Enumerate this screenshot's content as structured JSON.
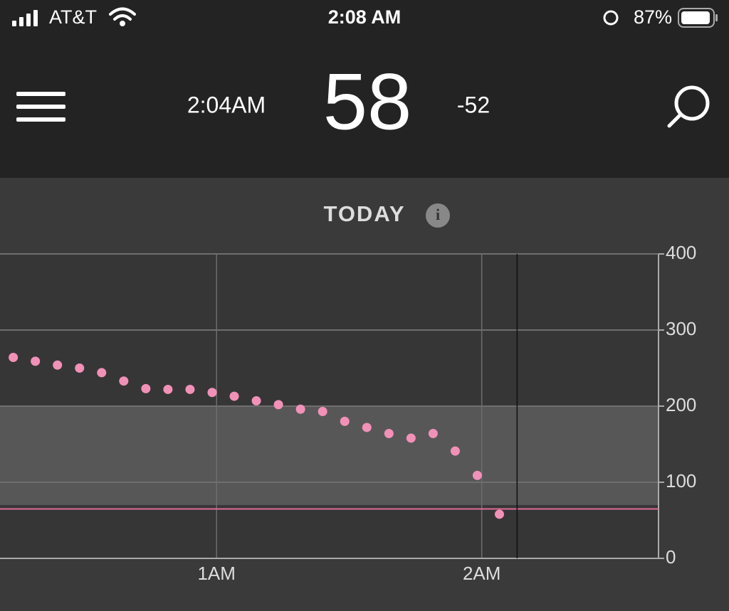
{
  "status_bar": {
    "carrier": "AT&T",
    "time": "2:08 AM",
    "battery": "87%"
  },
  "header": {
    "reading_time": "2:04AM",
    "glucose": "58",
    "delta": "-52"
  },
  "chart_data": {
    "type": "scatter",
    "title": "TODAY",
    "x": [
      14,
      19,
      24,
      29,
      34,
      39,
      44,
      49,
      54,
      59,
      64,
      69,
      74,
      79,
      84,
      89,
      94,
      99,
      104,
      109,
      114,
      119,
      124
    ],
    "series": [
      {
        "color": "#f291b8",
        "values": [
          264,
          259,
          254,
          250,
          244,
          233,
          223,
          222,
          222,
          218,
          213,
          207,
          202,
          196,
          193,
          180,
          172,
          164,
          158,
          164,
          141,
          109,
          58
        ]
      }
    ],
    "xlim": [
      11,
      160
    ],
    "xticks": [
      {
        "value": 60,
        "label": "1AM"
      },
      {
        "value": 120,
        "label": "2AM"
      }
    ],
    "ylim": [
      0,
      400
    ],
    "yticks": [
      0,
      100,
      200,
      300,
      400
    ],
    "target_range": [
      70,
      200
    ],
    "low_threshold": 65,
    "now_x": 128,
    "grid": true
  }
}
